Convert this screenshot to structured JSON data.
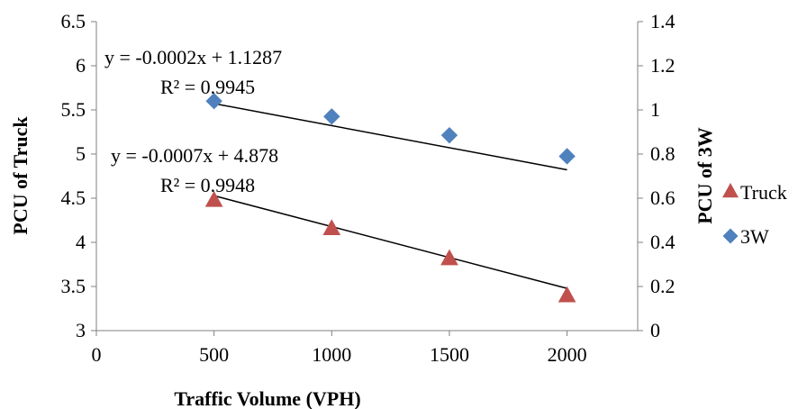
{
  "chart_data": {
    "type": "scatter",
    "xlabel": "Traffic Volume (VPH)",
    "ylabel": "PCU of Truck",
    "y2label": "PCU of 3W",
    "xlim": [
      0,
      2300
    ],
    "ylim": [
      3,
      6.5
    ],
    "y2lim": [
      0,
      1.4
    ],
    "x_ticks": [
      "0",
      "500",
      "1000",
      "1500",
      "2000"
    ],
    "y_ticks": [
      "3",
      "3.5",
      "4",
      "4.5",
      "5",
      "5.5",
      "6",
      "6.5"
    ],
    "y2_ticks": [
      "0",
      "0.2",
      "0.4",
      "0.6",
      "0.8",
      "1",
      "1.2",
      "1.4"
    ],
    "grid": false,
    "legend_position": "right",
    "series": [
      {
        "name": "Truck",
        "axis": "left",
        "marker": "triangle",
        "color": "#C0504D",
        "x": [
          500,
          1000,
          1500,
          2000
        ],
        "y": [
          4.48,
          4.16,
          3.82,
          3.4
        ],
        "trendline": {
          "equation": "y = -0.0007x + 4.878",
          "r2": "R² = 0.9948",
          "slope": -0.0007,
          "intercept": 4.878
        }
      },
      {
        "name": "3W",
        "axis": "right",
        "marker": "diamond",
        "color": "#4F81BD",
        "x": [
          500,
          1000,
          1500,
          2000
        ],
        "y": [
          1.04,
          0.97,
          0.885,
          0.79
        ],
        "trendline": {
          "equation": "y = -0.0002x + 1.1287",
          "r2": "R² = 0.9945",
          "slope": -0.0002,
          "intercept": 1.1287
        }
      }
    ]
  }
}
